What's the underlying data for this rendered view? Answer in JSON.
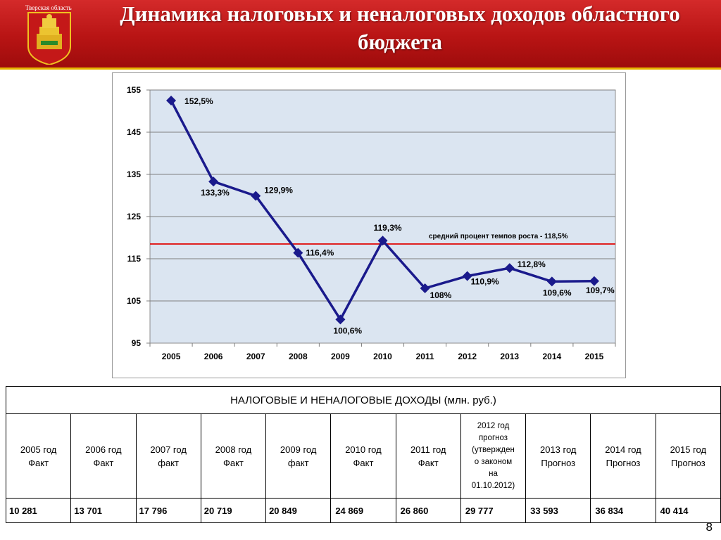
{
  "header": {
    "region_label": "Тверская область",
    "title": "Динамика налоговых и неналоговых доходов областного бюджета"
  },
  "chart_data": {
    "type": "line",
    "categories": [
      "2005",
      "2006",
      "2007",
      "2008",
      "2009",
      "2010",
      "2011",
      "2012",
      "2013",
      "2014",
      "2015"
    ],
    "series": [
      {
        "values": [
          152.5,
          133.3,
          129.9,
          116.4,
          100.6,
          119.3,
          108,
          110.9,
          112.8,
          109.6,
          109.7
        ],
        "labels": [
          "152,5%",
          "133,3%",
          "129,9%",
          "116,4%",
          "100,6%",
          "119,3%",
          "108%",
          "110,9%",
          "112,8%",
          "109,6%",
          "109,7%"
        ],
        "color": "#1a1a8c"
      }
    ],
    "reference_line": {
      "value": 118.5,
      "label": "средний процент темпов роста - 118,5%",
      "color": "#e02020"
    },
    "y_ticks": [
      95,
      105,
      115,
      125,
      135,
      145,
      155
    ],
    "ylim": [
      95,
      155
    ],
    "grid": true,
    "plot_background": "#dbe5f1"
  },
  "table": {
    "caption": "НАЛОГОВЫЕ И НЕНАЛОГОВЫЕ ДОХОДЫ (млн. руб.)",
    "headers": [
      [
        "2005 год",
        "Факт"
      ],
      [
        "2006 год",
        "Факт"
      ],
      [
        "2007 год",
        "факт"
      ],
      [
        "2008 год",
        "Факт"
      ],
      [
        "2009 год",
        "факт"
      ],
      [
        "2010 год",
        "Факт"
      ],
      [
        "2011 год",
        "Факт"
      ],
      [
        "2012 год",
        "прогноз",
        "(утвержден",
        "о законом",
        "на",
        "01.10.2012)"
      ],
      [
        "2013 год",
        "Прогноз"
      ],
      [
        "2014 год",
        "Прогноз"
      ],
      [
        "2015 год",
        "Прогноз"
      ]
    ],
    "values": [
      "10 281",
      "13 701",
      "17 796",
      "20 719",
      "20 849",
      "24 869",
      "26 860",
      "29 777",
      "33 593",
      "36 834",
      "40 414"
    ]
  },
  "page_number": "8"
}
